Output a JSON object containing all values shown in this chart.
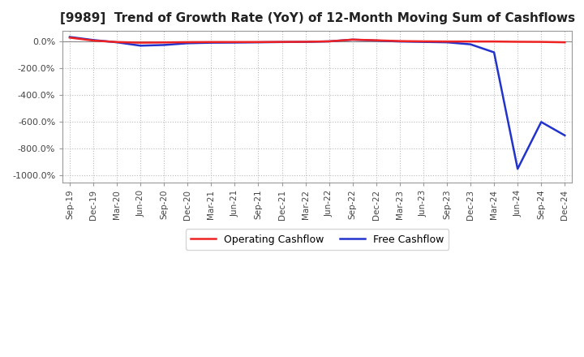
{
  "title": "[9989]  Trend of Growth Rate (YoY) of 12-Month Moving Sum of Cashflows",
  "ylim": [
    -1050,
    80
  ],
  "yticks": [
    0,
    -200,
    -400,
    -600,
    -800,
    -1000
  ],
  "background_color": "#ffffff",
  "grid_color": "#bbbbbb",
  "line_operating_color": "#ee2222",
  "line_free_color": "#2233cc",
  "legend_operating": "Operating Cashflow",
  "legend_free": "Free Cashflow",
  "x_labels": [
    "Sep-19",
    "Dec-19",
    "Mar-20",
    "Jun-20",
    "Sep-20",
    "Dec-20",
    "Mar-21",
    "Jun-21",
    "Sep-21",
    "Dec-21",
    "Mar-22",
    "Jun-22",
    "Sep-22",
    "Dec-22",
    "Mar-23",
    "Jun-23",
    "Sep-23",
    "Dec-23",
    "Mar-24",
    "Jun-24",
    "Sep-24",
    "Dec-24"
  ],
  "operating_cf": [
    30,
    8,
    -3,
    -8,
    -6,
    -4,
    -3,
    -3,
    -3,
    -2,
    -1,
    2,
    15,
    10,
    4,
    2,
    1,
    1,
    1,
    -1,
    -2,
    -5
  ],
  "free_cf": [
    35,
    12,
    -5,
    -30,
    -25,
    -12,
    -8,
    -7,
    -5,
    -3,
    -2,
    2,
    15,
    8,
    1,
    -2,
    -5,
    -20,
    -80,
    -950,
    -600,
    -700
  ]
}
